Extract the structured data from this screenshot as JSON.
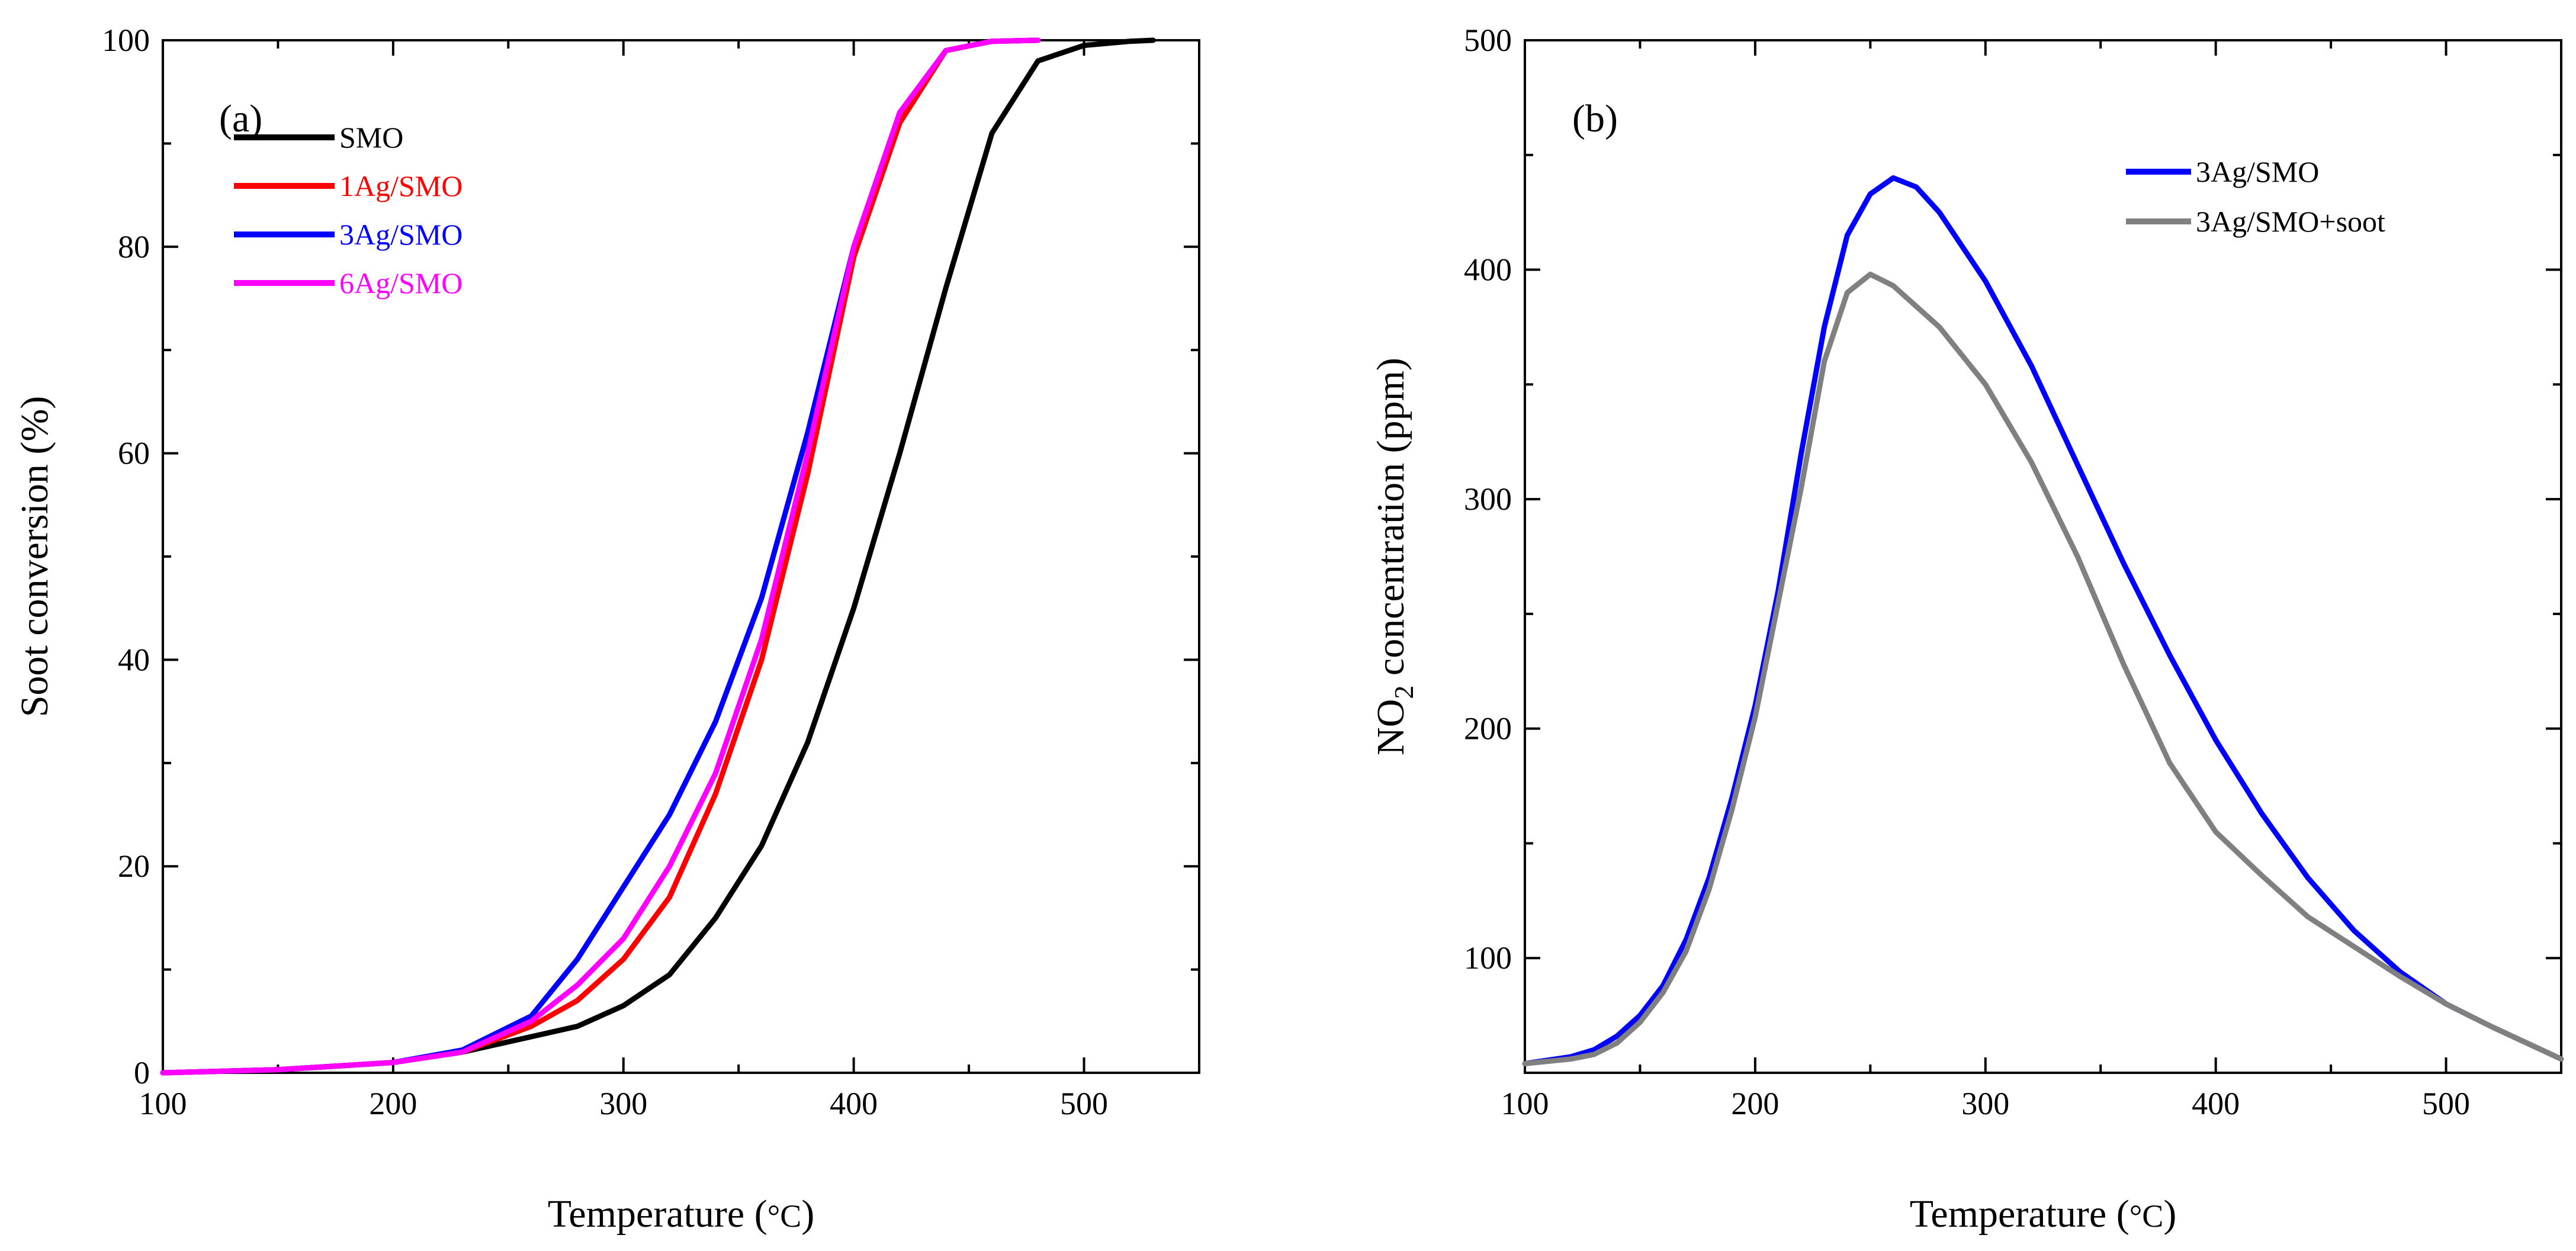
{
  "chart_data": [
    {
      "id": "panel-a",
      "type": "line",
      "panel_label": "(a)",
      "title": "",
      "xlabel": "Temperature (",
      "xlabel_unit": "°C",
      "xlabel_close": ")",
      "ylabel": "Soot conversion (%)",
      "xlim": [
        100,
        550
      ],
      "ylim": [
        0,
        100
      ],
      "xticks": [
        100,
        200,
        300,
        400,
        500
      ],
      "yticks": [
        0,
        20,
        40,
        60,
        80,
        100
      ],
      "grid": false,
      "legend_position": "top-left",
      "series": [
        {
          "name": "SMO",
          "color": "#000000",
          "x": [
            100,
            150,
            200,
            230,
            260,
            280,
            300,
            320,
            340,
            360,
            380,
            400,
            420,
            440,
            460,
            480,
            500,
            520,
            530
          ],
          "y": [
            0,
            0.3,
            1,
            2,
            3.5,
            4.5,
            6.5,
            9.5,
            15,
            22,
            32,
            45,
            60,
            76,
            91,
            98,
            99.5,
            99.9,
            100
          ]
        },
        {
          "name": "1Ag/SMO",
          "color": "#ff0000",
          "x": [
            100,
            150,
            200,
            230,
            260,
            280,
            300,
            320,
            340,
            360,
            380,
            400,
            420,
            440,
            460,
            480
          ],
          "y": [
            0,
            0.3,
            1,
            2,
            4.5,
            7,
            11,
            17,
            27,
            40,
            58,
            79,
            92,
            99,
            99.9,
            100
          ]
        },
        {
          "name": "3Ag/SMO",
          "color": "#0000ff",
          "x": [
            100,
            150,
            200,
            230,
            260,
            280,
            300,
            320,
            340,
            360,
            380,
            400,
            420,
            440,
            460,
            480
          ],
          "y": [
            0,
            0.3,
            1,
            2.2,
            5.5,
            11,
            18,
            25,
            34,
            46,
            62,
            80,
            93,
            99,
            99.9,
            100
          ]
        },
        {
          "name": "6Ag/SMO",
          "color": "#ff00ff",
          "x": [
            100,
            150,
            200,
            230,
            260,
            280,
            300,
            320,
            340,
            360,
            380,
            400,
            420,
            440,
            460,
            480
          ],
          "y": [
            0,
            0.3,
            1,
            2,
            5,
            8.5,
            13,
            20,
            29,
            42,
            60,
            80,
            93,
            99,
            99.9,
            100
          ]
        }
      ]
    },
    {
      "id": "panel-b",
      "type": "line",
      "panel_label": "(b)",
      "title": "",
      "xlabel": "Temperature (",
      "xlabel_unit": "°C",
      "xlabel_close": ")",
      "ylabel_prefix": "NO",
      "ylabel_sub": "2",
      "ylabel_suffix": " concentration (ppm)",
      "xlim": [
        100,
        550
      ],
      "ylim": [
        50,
        500
      ],
      "xticks": [
        100,
        200,
        300,
        400,
        500
      ],
      "yticks": [
        100,
        200,
        300,
        400,
        500
      ],
      "grid": false,
      "legend_position": "top-right",
      "series": [
        {
          "name": "3Ag/SMO",
          "color": "#0000ff",
          "x": [
            100,
            120,
            130,
            140,
            150,
            160,
            170,
            180,
            190,
            200,
            210,
            220,
            230,
            240,
            250,
            260,
            270,
            280,
            300,
            320,
            340,
            360,
            380,
            400,
            420,
            440,
            460,
            480,
            500,
            520,
            550
          ],
          "y": [
            54,
            57,
            60,
            66,
            75,
            88,
            108,
            135,
            170,
            210,
            260,
            320,
            375,
            415,
            433,
            440,
            436,
            425,
            395,
            358,
            315,
            272,
            232,
            195,
            163,
            135,
            112,
            94,
            80,
            70,
            56
          ]
        },
        {
          "name": "3Ag/SMO+soot",
          "color": "#808080",
          "x": [
            100,
            120,
            130,
            140,
            150,
            160,
            170,
            180,
            190,
            200,
            210,
            220,
            230,
            240,
            250,
            260,
            270,
            280,
            300,
            320,
            340,
            360,
            380,
            400,
            420,
            440,
            460,
            480,
            500,
            520,
            550
          ],
          "y": [
            54,
            56,
            58,
            63,
            72,
            85,
            103,
            130,
            165,
            205,
            255,
            305,
            360,
            390,
            398,
            393,
            384,
            375,
            350,
            316,
            275,
            228,
            185,
            155,
            136,
            118,
            105,
            92,
            80,
            70,
            56
          ]
        }
      ]
    }
  ]
}
